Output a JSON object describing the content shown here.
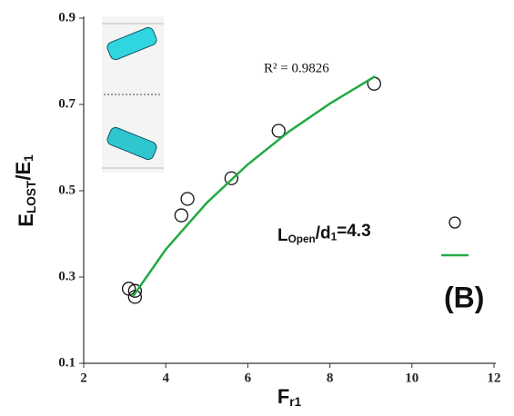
{
  "chart_data": {
    "type": "scatter",
    "xlim": [
      2,
      12
    ],
    "xticks": [
      2,
      4,
      6,
      8,
      10,
      12
    ],
    "ylim": [
      0.1,
      0.9
    ],
    "yticks": [
      0.1,
      0.3,
      0.5,
      0.7,
      0.9
    ],
    "x_label": [
      {
        "text": "F"
      },
      {
        "text": "r1",
        "sub": true
      }
    ],
    "y_label": [
      {
        "text": "E"
      },
      {
        "text": "LOST",
        "sub": true
      },
      {
        "text": "/E"
      },
      {
        "text": "1",
        "sub": true
      }
    ],
    "legend_label": [
      {
        "text": "L"
      },
      {
        "text": "Open",
        "sub": true
      },
      {
        "text": "/d"
      },
      {
        "text": "1",
        "sub": true
      },
      {
        "text": "=4.3"
      }
    ],
    "annotations": [
      "R² = 0.9826",
      "(B)"
    ],
    "series": [
      {
        "kind": "points",
        "color": "#111111",
        "x": [
          3.1,
          3.25,
          3.25,
          4.38,
          4.53,
          5.6,
          6.75,
          9.08
        ],
        "values": [
          0.273,
          0.268,
          0.254,
          0.443,
          0.481,
          0.529,
          0.639,
          0.748
        ]
      },
      {
        "kind": "line",
        "color": "#22aa44",
        "x": [
          3.2,
          4,
          5,
          6,
          7,
          8,
          9.1
        ],
        "values": [
          0.255,
          0.364,
          0.472,
          0.561,
          0.637,
          0.702,
          0.765
        ]
      }
    ]
  }
}
